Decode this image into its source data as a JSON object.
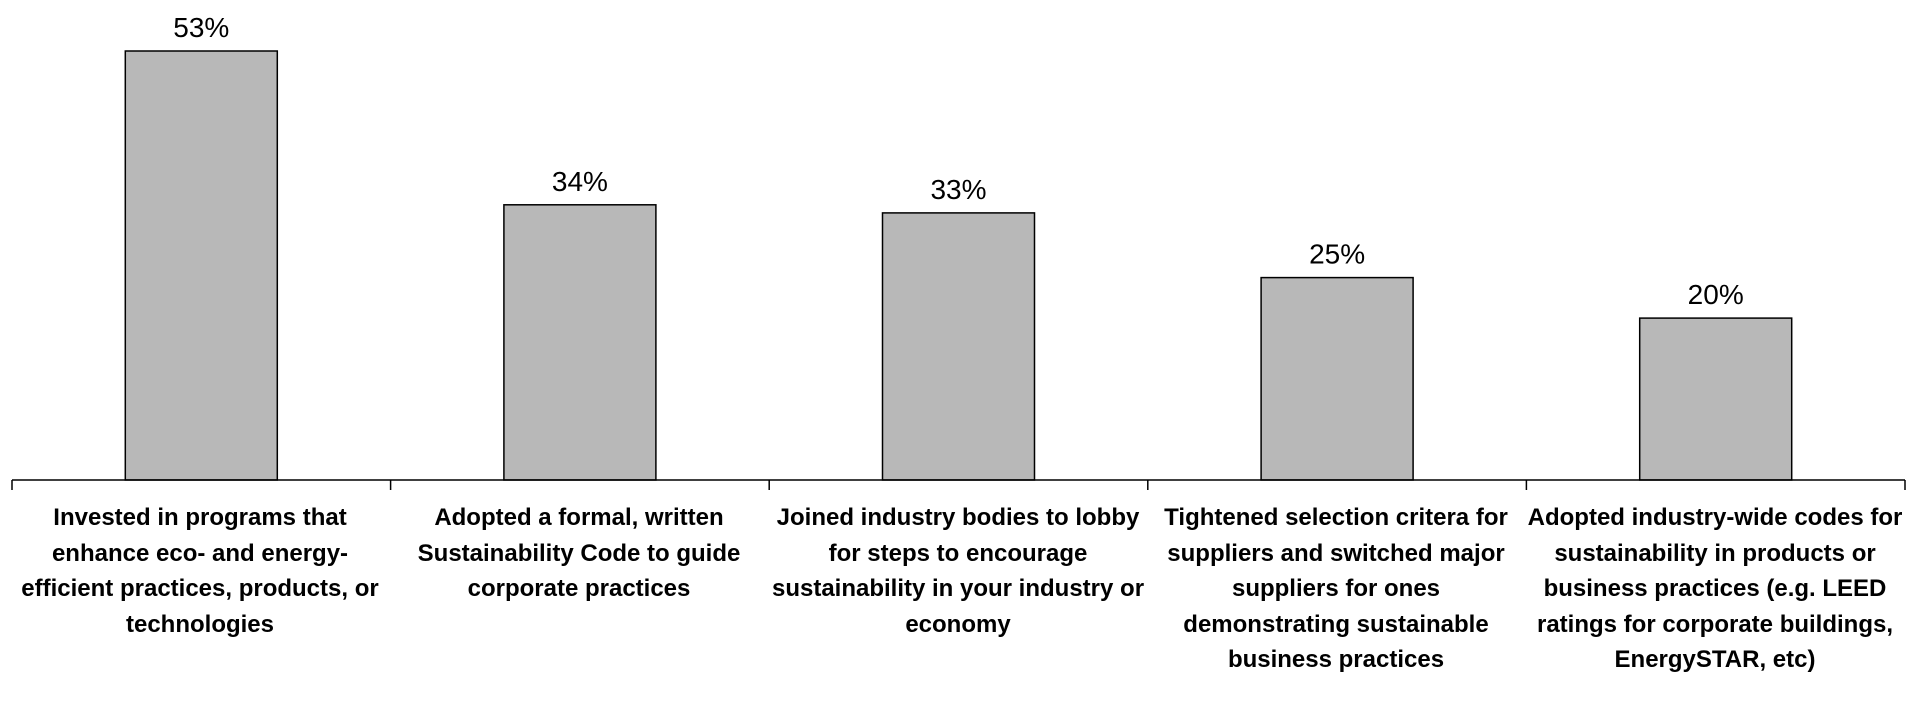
{
  "colors": {
    "bar_fill": "#b8b8b8",
    "bar_stroke": "#000000",
    "axis": "#000000",
    "text": "#000000",
    "background": "#ffffff"
  },
  "chart_data": {
    "type": "bar",
    "categories": [
      "Invested in programs that enhance eco- and energy-efficient practices, products, or technologies",
      "Adopted a formal, written Sustainability Code to guide corporate practices",
      "Joined industry bodies to lobby for steps to encourage sustainability in your industry or economy",
      "Tightened selection critera for suppliers and switched major suppliers for ones demonstrating sustainable business practices",
      "Adopted industry-wide codes for sustainability in products or business practices (e.g. LEED ratings for corporate buildings, EnergySTAR, etc)"
    ],
    "values": [
      53,
      34,
      33,
      25,
      20
    ],
    "value_labels": [
      "53%",
      "34%",
      "33%",
      "25%",
      "20%"
    ],
    "ylim": [
      0,
      53
    ],
    "title": "",
    "xlabel": "",
    "ylabel": "",
    "grid": false,
    "legend": "none"
  }
}
